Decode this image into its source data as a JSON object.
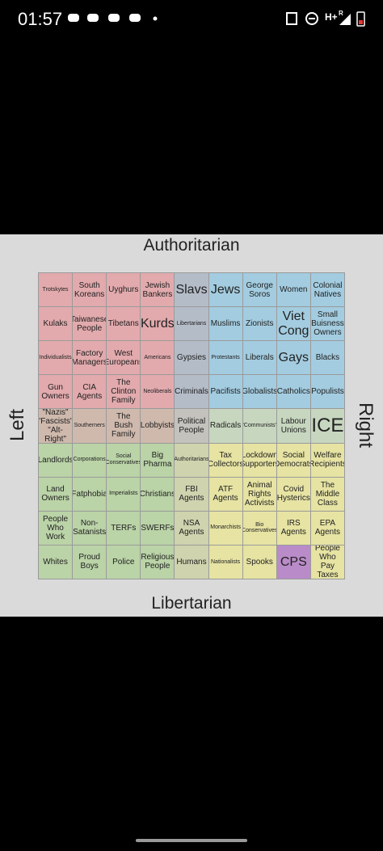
{
  "status_bar": {
    "time": "01:57",
    "network": "H+",
    "roaming": "R"
  },
  "image": {
    "top_label": "Authoritarian",
    "bottom_label": "Libertarian",
    "left_label": "Left",
    "right_label": "Right",
    "grid": {
      "rows": [
        [
          "Trotskytes",
          "South Koreans",
          "Uyghurs",
          "Jewish Bankers",
          "Slavs",
          "Jews",
          "George Soros",
          "Women",
          "Colonial Natives"
        ],
        [
          "Kulaks",
          "Taiwanese People",
          "Tibetans",
          "Kurds",
          "Libertarians",
          "Muslims",
          "Zionists",
          "Viet Cong",
          "Small Buisness Owners"
        ],
        [
          "Individualists",
          "Factory Managers",
          "West Europeans",
          "Americans",
          "Gypsies",
          "Protestants",
          "Liberals",
          "Gays",
          "Blacks"
        ],
        [
          "Gun Owners",
          "CIA Agents",
          "The Clinton Family",
          "Neoliberals",
          "Criminals",
          "Pacifists",
          "Globalists",
          "Catholics",
          "Populists"
        ],
        [
          "\"Nazis\" \"Fascists\" \"Alt-Right\"",
          "Southerners",
          "The Bush Family",
          "Lobbyists",
          "Political People",
          "Radicals",
          "\"Communists\"",
          "Labour Unions",
          "ICE"
        ],
        [
          "Landlords",
          "Corporations",
          "Social Conservatives",
          "Big Pharma",
          "Authoritarians",
          "Tax Collectors",
          "Lockdown Supporters",
          "Social Democrats",
          "Welfare Recipients"
        ],
        [
          "Land Owners",
          "Fatphobia",
          "Imperialists",
          "Christians",
          "FBI Agents",
          "ATF Agents",
          "Animal Rights Activists",
          "Covid Hysterics",
          "The Middle Class"
        ],
        [
          "People Who Work",
          "Non-Satanists",
          "TERFs",
          "SWERFs",
          "NSA Agents",
          "Monarchists",
          "Bio Conservatives",
          "IRS Agents",
          "EPA Agents"
        ],
        [
          "Whites",
          "Proud Boys",
          "Police",
          "Religious People",
          "Humans",
          "Nationalists",
          "Spooks",
          "CPS",
          "People Who Pay Taxes"
        ]
      ]
    }
  }
}
